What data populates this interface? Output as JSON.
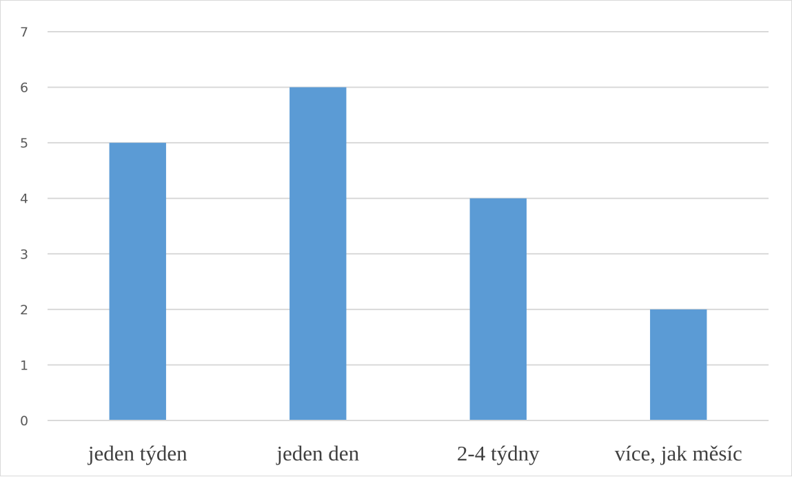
{
  "chart_data": {
    "type": "bar",
    "categories": [
      "jeden týden",
      "jeden den",
      "2-4 týdny",
      "více, jak měsíc"
    ],
    "values": [
      5,
      6,
      4,
      2
    ],
    "ylim": [
      0,
      7
    ],
    "yticks": [
      "0",
      "1",
      "2",
      "3",
      "4",
      "5",
      "6",
      "7"
    ],
    "title": "",
    "xlabel": "",
    "ylabel": "",
    "grid": true,
    "legend": "none",
    "colors": {
      "bar": "#5b9bd5",
      "grid": "#d9d9d9",
      "tick_text": "#595959",
      "category_text": "#404040"
    }
  }
}
